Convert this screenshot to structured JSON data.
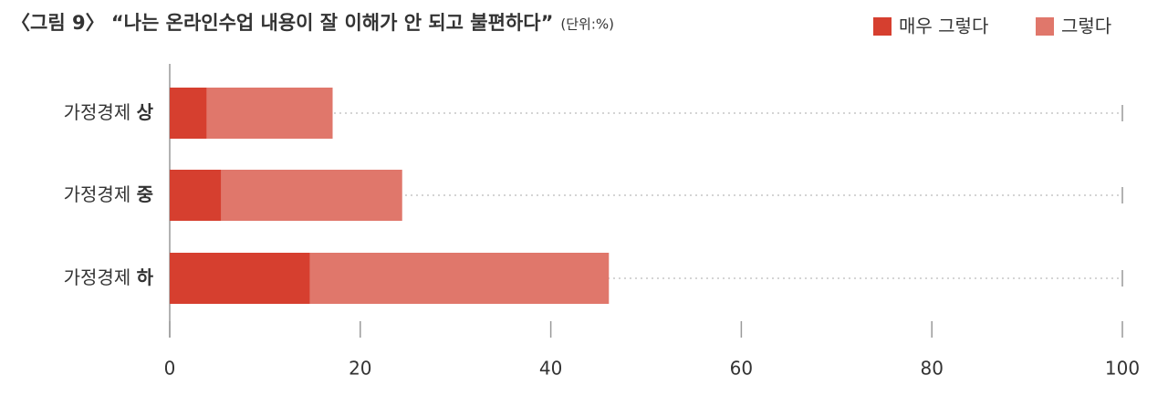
{
  "chart_data": {
    "type": "stacked-bar-horizontal",
    "title": "〈그림 9〉 “나는 온라인수업 내용이 잘 이해가 안 되고 불편하다”",
    "subtitle": "(단위:%)",
    "categories": [
      "가정경제 상",
      "가정경제 중",
      "가정경제 하"
    ],
    "series": [
      {
        "name": "매우 그렇다",
        "color": "#d63f2f",
        "values": [
          3.9,
          5.4,
          14.7
        ]
      },
      {
        "name": "그렇다",
        "color": "#e0776b",
        "values": [
          13.2,
          19.0,
          31.4
        ]
      }
    ],
    "xlim": [
      0,
      100
    ],
    "xticks": [
      0,
      20,
      40,
      60,
      80,
      100
    ],
    "legend": "top-right"
  }
}
